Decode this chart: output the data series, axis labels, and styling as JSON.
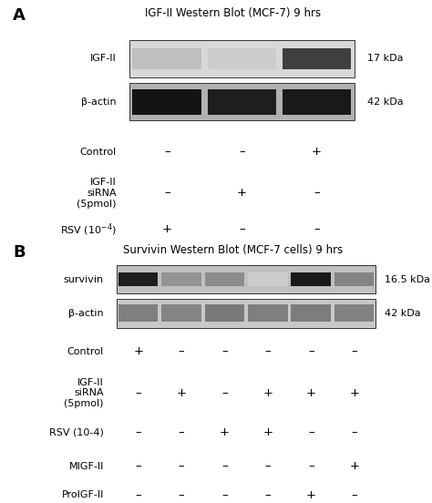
{
  "panel_A": {
    "title": "IGF-II Western Blot (MCF-7) 9 hrs",
    "blot_labels": [
      "IGF-II",
      "β-actin"
    ],
    "kda_labels": [
      "17 kDa",
      "42 kDa"
    ],
    "n_lanes": 3,
    "igfII_bands": [
      0.25,
      0.2,
      0.75
    ],
    "actin_bands": [
      0.92,
      0.88,
      0.9
    ],
    "row_label_texts": [
      "Control",
      "IGF-II\nsiRNA\n(5pmol)",
      "RSV (10$^{-4}$)"
    ],
    "table": [
      [
        "–",
        "–",
        "+"
      ],
      [
        "–",
        "+",
        "–"
      ],
      [
        "+",
        "–",
        "–"
      ]
    ]
  },
  "panel_B": {
    "title": "Survivin Western Blot (MCF-7 cells) 9 hrs",
    "blot_labels": [
      "survivin",
      "β-actin"
    ],
    "kda_labels": [
      "16.5 kDa",
      "42 kDa"
    ],
    "n_lanes": 6,
    "survivin_bands": [
      0.88,
      0.42,
      0.45,
      0.2,
      0.9,
      0.48
    ],
    "actin_bands": [
      0.5,
      0.48,
      0.52,
      0.5,
      0.51,
      0.49
    ],
    "row_label_texts": [
      "Control",
      "IGF-II\nsiRNA\n(5pmol)",
      "RSV (10-4)",
      "MIGF-II",
      "ProIGF-II"
    ],
    "table": [
      [
        "+",
        "–",
        "–",
        "–",
        "–",
        "–"
      ],
      [
        "–",
        "+",
        "–",
        "+",
        "+",
        "+"
      ],
      [
        "–",
        "–",
        "+",
        "+",
        "–",
        "–"
      ],
      [
        "–",
        "–",
        "–",
        "–",
        "–",
        "+"
      ],
      [
        "–",
        "–",
        "–",
        "–",
        "+",
        "–"
      ]
    ]
  },
  "bg_color": "#ffffff",
  "text_color": "#000000",
  "blot_bg_A_igf": "#d8d8d8",
  "blot_bg_A_actin": "#b0b0b0",
  "blot_bg_B_surv": "#c0c0c0",
  "blot_bg_B_actin": "#c8c8c8"
}
